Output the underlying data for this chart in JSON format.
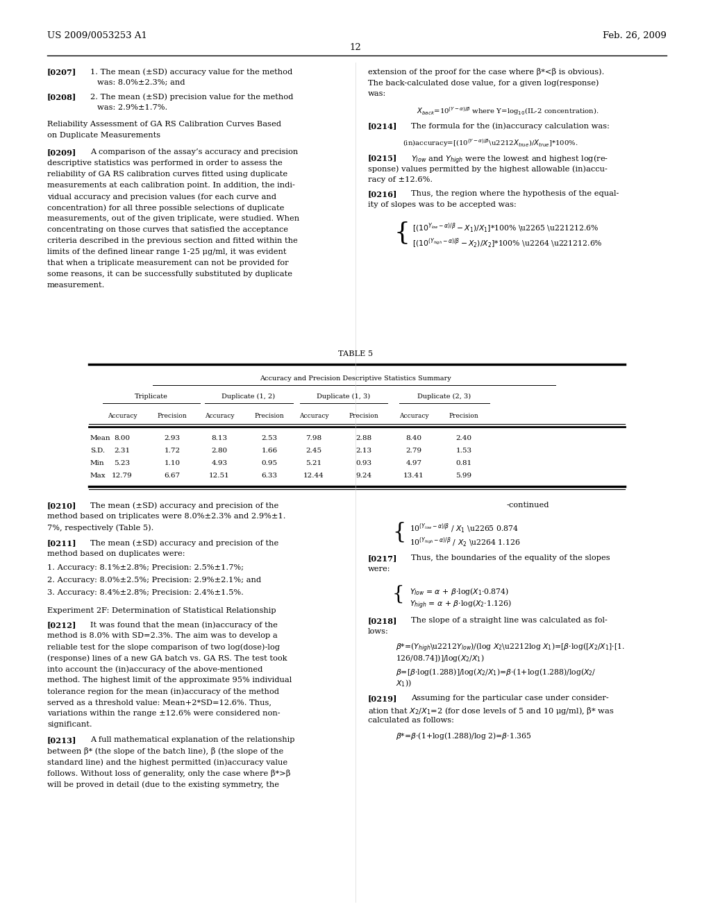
{
  "header_left": "US 2009/0053253 A1",
  "header_right": "Feb. 26, 2009",
  "page_number": "12",
  "background_color": "#ffffff",
  "table_title": "TABLE 5",
  "table_subtitle": "Accuracy and Precision Descriptive Statistics Summary",
  "table_col_groups": [
    "Triplicate",
    "Duplicate (1, 2)",
    "Duplicate (1, 3)",
    "Duplicate (2, 3)"
  ],
  "table_col_headers": [
    "Accuracy",
    "Precision",
    "Accuracy",
    "Precision",
    "Accuracy",
    "Precision",
    "Accuracy",
    "Precision"
  ],
  "table_row_labels": [
    "Mean",
    "S.D.",
    "Min",
    "Max"
  ],
  "table_data": [
    [
      8.0,
      2.93,
      8.13,
      2.53,
      7.98,
      2.88,
      8.4,
      2.4
    ],
    [
      2.31,
      1.72,
      2.8,
      1.66,
      2.45,
      2.13,
      2.79,
      1.53
    ],
    [
      5.23,
      1.1,
      4.93,
      0.95,
      5.21,
      0.93,
      4.97,
      0.81
    ],
    [
      12.79,
      6.67,
      12.51,
      6.33,
      12.44,
      9.24,
      13.41,
      5.99
    ]
  ]
}
